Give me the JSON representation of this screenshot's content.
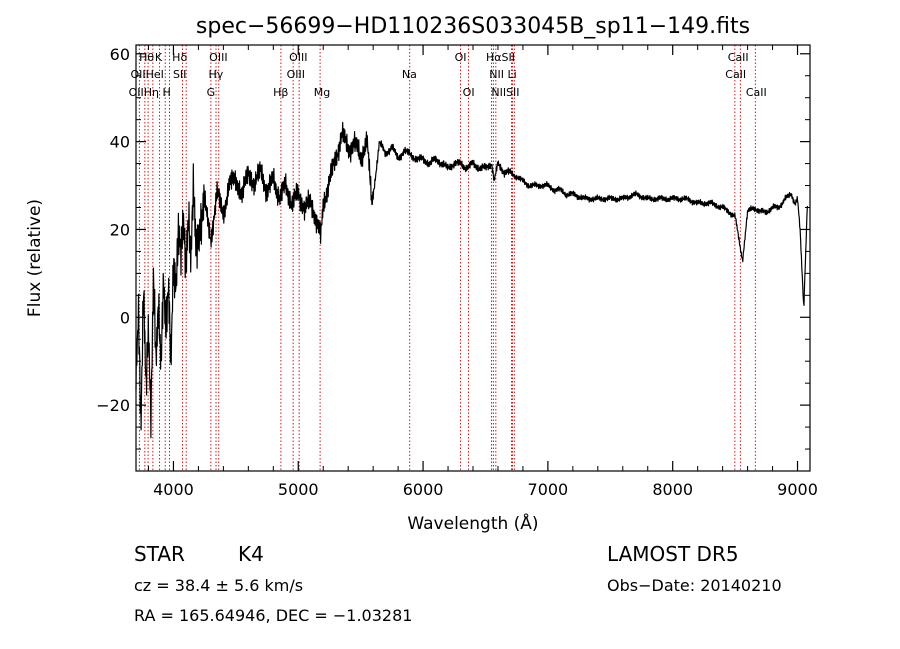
{
  "title": "spec−56699−HD110236S033045B_sp11−149.fits",
  "info": {
    "object_class": "STAR",
    "subclass": "K4",
    "survey": "LAMOST DR5",
    "cz": "cz = 38.4 ± 5.6 km/s",
    "obs_date": "Obs−Date: 20140210",
    "radec": "RA = 165.64946, DEC =  −1.03281"
  },
  "colors": {
    "line": "#000000",
    "marker": "#cc0000",
    "background": "#ffffff"
  },
  "chart_data": {
    "type": "line",
    "title": "spec−56699−HD110236S033045B_sp11−149.fits",
    "xlabel": "Wavelength (Å)",
    "ylabel": "Flux (relative)",
    "xlim": [
      3700,
      9100
    ],
    "ylim": [
      -35,
      62
    ],
    "xticks": [
      4000,
      5000,
      6000,
      7000,
      8000,
      9000
    ],
    "xtick_labels": [
      "4000",
      "5000",
      "6000",
      "7000",
      "8000",
      "9000"
    ],
    "yticks": [
      -20,
      0,
      20,
      40,
      60
    ],
    "ytick_labels": [
      "−20",
      "0",
      "20",
      "40",
      "60"
    ],
    "grid": false,
    "series": [
      {
        "x": [
          3700,
          3720,
          3740,
          3760,
          3780,
          3800,
          3820,
          3840,
          3860,
          3880,
          3900,
          3920,
          3940,
          3960,
          3980,
          4000,
          4020,
          4040,
          4060,
          4080,
          4100,
          4120,
          4140,
          4160,
          4180,
          4200,
          4250,
          4300,
          4350,
          4400,
          4450,
          4500,
          4550,
          4600,
          4650,
          4700,
          4750,
          4800,
          4850,
          4900,
          4950,
          5000,
          5050,
          5100,
          5150,
          5180,
          5200,
          5250,
          5300,
          5350,
          5400,
          5450,
          5500,
          5550,
          5590,
          5650,
          5700,
          5750,
          5800,
          5850,
          5900,
          5950,
          6000,
          6050,
          6100,
          6150,
          6200,
          6250,
          6300,
          6350,
          6400,
          6450,
          6500,
          6550,
          6570,
          6600,
          6650,
          6700,
          6750,
          6800,
          6850,
          6900,
          6950,
          7000,
          7050,
          7100,
          7150,
          7200,
          7300,
          7400,
          7500,
          7600,
          7700,
          7800,
          7900,
          8000,
          8100,
          8200,
          8300,
          8400,
          8450,
          8500,
          8540,
          8560,
          8600,
          8650,
          8700,
          8750,
          8800,
          8850,
          8900,
          8950,
          8980,
          9000,
          9020,
          9050,
          9080
        ],
        "y": [
          -10,
          2,
          -27,
          5,
          -15,
          0,
          -22,
          8,
          -12,
          3,
          -8,
          10,
          -5,
          5,
          -10,
          15,
          8,
          18,
          12,
          22,
          14,
          25,
          12,
          28,
          16,
          20,
          26,
          18,
          28,
          24,
          30,
          32,
          27,
          34,
          29,
          35,
          27,
          33,
          26,
          31,
          25,
          29,
          24,
          27,
          21,
          18,
          26,
          31,
          36,
          42,
          38,
          40,
          36,
          41,
          25,
          40,
          37,
          39,
          36,
          38,
          37,
          36,
          36,
          35,
          36,
          35,
          34,
          35,
          35,
          34,
          35,
          34,
          34,
          35,
          31,
          35,
          33,
          33,
          32,
          31,
          30,
          30,
          30,
          30,
          29,
          29,
          28,
          28,
          27,
          27,
          27,
          27,
          28,
          27,
          27,
          27,
          27,
          26,
          26,
          25,
          24,
          23,
          16,
          13,
          24,
          25,
          24,
          24,
          25,
          25,
          27,
          28,
          26,
          27,
          20,
          2,
          27
        ]
      }
    ],
    "markers": [
      {
        "wavelength": 3727,
        "label": "OII"
      },
      {
        "wavelength": 3771,
        "label": "Hθ"
      },
      {
        "wavelength": 3797,
        "label": "Hη"
      },
      {
        "wavelength": 3835,
        "label": "Hη"
      },
      {
        "wavelength": 3889,
        "label": "HeI"
      },
      {
        "wavelength": 3934,
        "label": "K"
      },
      {
        "wavelength": 3969,
        "label": "H"
      },
      {
        "wavelength": 4072,
        "label": "SII"
      },
      {
        "wavelength": 4102,
        "label": "Hδ"
      },
      {
        "wavelength": 4300,
        "label": "G"
      },
      {
        "wavelength": 4341,
        "label": "Hγ"
      },
      {
        "wavelength": 4363,
        "label": "OIII"
      },
      {
        "wavelength": 4861,
        "label": "Hβ"
      },
      {
        "wavelength": 4959,
        "label": "OIII"
      },
      {
        "wavelength": 5007,
        "label": "OIII"
      },
      {
        "wavelength": 5175,
        "label": "Mg"
      },
      {
        "wavelength": 5893,
        "label": "Na"
      },
      {
        "wavelength": 6300,
        "label": "OI"
      },
      {
        "wavelength": 6364,
        "label": "OI"
      },
      {
        "wavelength": 6548,
        "label": "NII"
      },
      {
        "wavelength": 6563,
        "label": "Hα"
      },
      {
        "wavelength": 6583,
        "label": "NII"
      },
      {
        "wavelength": 6708,
        "label": "Li"
      },
      {
        "wavelength": 6716,
        "label": "SII"
      },
      {
        "wavelength": 6731,
        "label": "SII"
      },
      {
        "wavelength": 8498,
        "label": "CaII"
      },
      {
        "wavelength": 8542,
        "label": "CaII"
      },
      {
        "wavelength": 8662,
        "label": "CaII"
      }
    ],
    "marker_labels": [
      {
        "text": "Hθ",
        "wavelength": 3785,
        "row": 1
      },
      {
        "text": "K",
        "wavelength": 3880,
        "row": 1
      },
      {
        "text": "Hδ",
        "wavelength": 4050,
        "row": 1
      },
      {
        "text": "OIII",
        "wavelength": 4360,
        "row": 1
      },
      {
        "text": "OIII",
        "wavelength": 5000,
        "row": 1
      },
      {
        "text": "OI",
        "wavelength": 6300,
        "row": 1
      },
      {
        "text": "HαSII",
        "wavelength": 6620,
        "row": 1
      },
      {
        "text": "CaII",
        "wavelength": 8525,
        "row": 1
      },
      {
        "text": "OIIHeI",
        "wavelength": 3790,
        "row": 2
      },
      {
        "text": "SII",
        "wavelength": 4050,
        "row": 2
      },
      {
        "text": "Hγ",
        "wavelength": 4340,
        "row": 2
      },
      {
        "text": "OIII",
        "wavelength": 4980,
        "row": 2
      },
      {
        "text": "Na",
        "wavelength": 5890,
        "row": 2
      },
      {
        "text": "NII Li",
        "wavelength": 6640,
        "row": 2
      },
      {
        "text": "CaII",
        "wavelength": 8505,
        "row": 2
      },
      {
        "text": "OIIHη H",
        "wavelength": 3810,
        "row": 3
      },
      {
        "text": "G",
        "wavelength": 4300,
        "row": 3
      },
      {
        "text": "Hβ",
        "wavelength": 4860,
        "row": 3
      },
      {
        "text": "Mg",
        "wavelength": 5190,
        "row": 3
      },
      {
        "text": "OI",
        "wavelength": 6365,
        "row": 3
      },
      {
        "text": "NIISII",
        "wavelength": 6660,
        "row": 3
      },
      {
        "text": "CaII",
        "wavelength": 8670,
        "row": 3
      }
    ]
  }
}
